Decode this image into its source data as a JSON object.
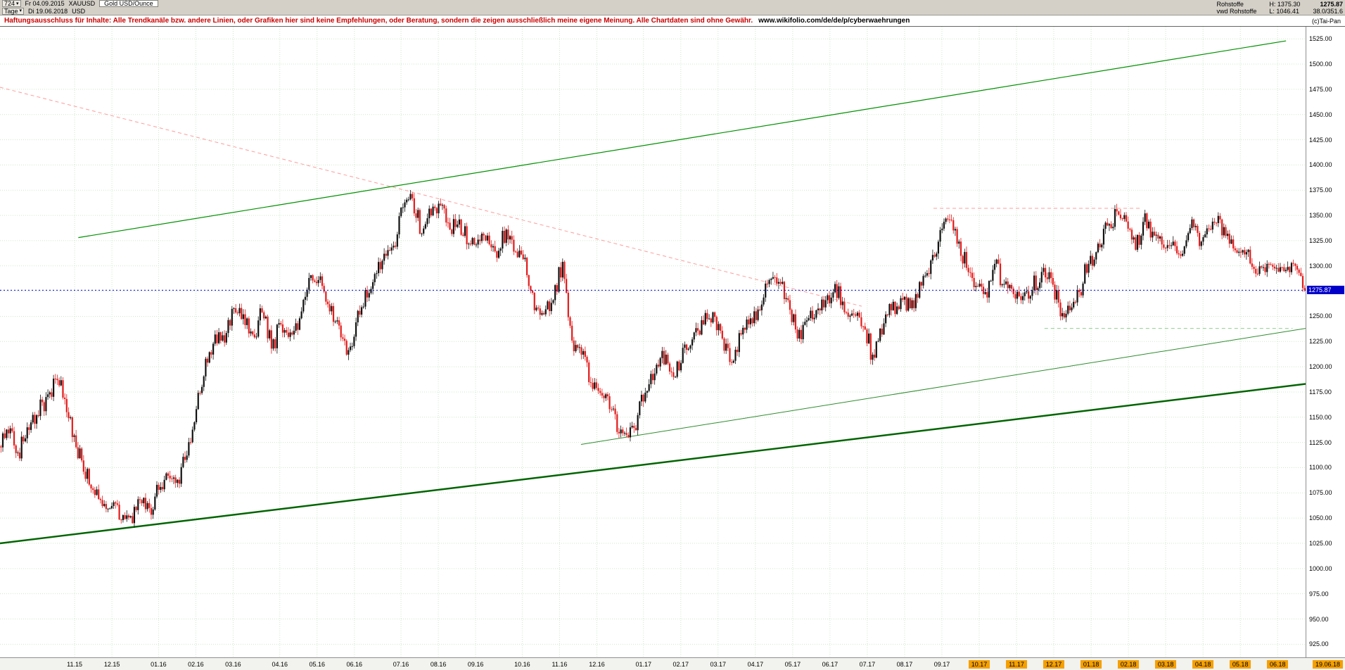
{
  "topbar": {
    "bars_count": "724",
    "start_date": "Fr 04.09.2015",
    "symbol": "XAUUSD",
    "instrument_name": "Gold USD/Ounce",
    "timeframe": "Tage",
    "end_date": "Di 19.06.2018",
    "currency": "USD",
    "category": "Rohstoffe",
    "feed": "vwd Rohstoffe",
    "high_label": "H: 1375.30",
    "low_label": "L: 1046.41",
    "last_price": "1275.87",
    "range_info": "38.0/351.6"
  },
  "disclaimer": {
    "text": "Haftungsausschluss für Inhalte: Alle Trendkanäle bzw. andere Linien, oder Grafiken hier sind keine Empfehlungen, oder Beratung, sondern die zeigen ausschließlich meine eigene Meinung. Alle Chartdaten sind ohne Gewähr.",
    "url": "www.wikifolio.com/de/de/p/cyberwaehrungen",
    "copyright": "(c)Tai-Pan"
  },
  "axis": {
    "current_price_label": "1275.87",
    "end_date_label": "19.06.18"
  },
  "chart_data": {
    "type": "candlestick",
    "title": "Gold USD/Ounce (XAUUSD), Tage, 04.09.2015 - 19.06.2018",
    "ylabel": "USD",
    "ylim": [
      912,
      1537
    ],
    "y_ticks_from": 1525,
    "y_ticks_to": 925,
    "y_tick_step": 25,
    "grid": true,
    "high": 1375.3,
    "low": 1046.41,
    "last": 1275.87,
    "up_color": "#101010",
    "down_color": "#e31a1a",
    "x_months": [
      {
        "label": "",
        "weeks": 8,
        "highlight": false
      },
      {
        "label": "11.15",
        "weeks": 4,
        "highlight": false
      },
      {
        "label": "12.15",
        "weeks": 5,
        "highlight": false
      },
      {
        "label": "01.16",
        "weeks": 4,
        "highlight": false
      },
      {
        "label": "02.16",
        "weeks": 4,
        "highlight": false
      },
      {
        "label": "03.16",
        "weeks": 5,
        "highlight": false
      },
      {
        "label": "04.16",
        "weeks": 4,
        "highlight": false
      },
      {
        "label": "05.16",
        "weeks": 4,
        "highlight": false
      },
      {
        "label": "06.16",
        "weeks": 5,
        "highlight": false
      },
      {
        "label": "07.16",
        "weeks": 4,
        "highlight": false
      },
      {
        "label": "08.16",
        "weeks": 4,
        "highlight": false
      },
      {
        "label": "09.16",
        "weeks": 5,
        "highlight": false
      },
      {
        "label": "10.16",
        "weeks": 4,
        "highlight": false
      },
      {
        "label": "11.16",
        "weeks": 4,
        "highlight": false
      },
      {
        "label": "12.16",
        "weeks": 5,
        "highlight": false
      },
      {
        "label": "01.17",
        "weeks": 4,
        "highlight": false
      },
      {
        "label": "02.17",
        "weeks": 4,
        "highlight": false
      },
      {
        "label": "03.17",
        "weeks": 4,
        "highlight": false
      },
      {
        "label": "04.17",
        "weeks": 4,
        "highlight": false
      },
      {
        "label": "05.17",
        "weeks": 4,
        "highlight": false
      },
      {
        "label": "06.17",
        "weeks": 4,
        "highlight": false
      },
      {
        "label": "07.17",
        "weeks": 4,
        "highlight": false
      },
      {
        "label": "08.17",
        "weeks": 4,
        "highlight": false
      },
      {
        "label": "09.17",
        "weeks": 4,
        "highlight": false
      },
      {
        "label": "10.17",
        "weeks": 4,
        "highlight": true
      },
      {
        "label": "11.17",
        "weeks": 4,
        "highlight": true
      },
      {
        "label": "12.17",
        "weeks": 4,
        "highlight": true
      },
      {
        "label": "01.18",
        "weeks": 4,
        "highlight": true
      },
      {
        "label": "02.18",
        "weeks": 4,
        "highlight": true
      },
      {
        "label": "03.18",
        "weeks": 4,
        "highlight": true
      },
      {
        "label": "04.18",
        "weeks": 4,
        "highlight": true
      },
      {
        "label": "05.18",
        "weeks": 4,
        "highlight": true
      },
      {
        "label": "06.18",
        "weeks": 3,
        "highlight": true
      }
    ],
    "weekly_closes": [
      1121,
      1134,
      1115,
      1140,
      1152,
      1170,
      1188,
      1168,
      1132,
      1096,
      1078,
      1062,
      1062,
      1048,
      1052,
      1068,
      1060,
      1078,
      1092,
      1088,
      1112,
      1158,
      1208,
      1232,
      1224,
      1258,
      1252,
      1232,
      1254,
      1218,
      1242,
      1234,
      1248,
      1288,
      1286,
      1262,
      1246,
      1212,
      1244,
      1276,
      1292,
      1312,
      1320,
      1358,
      1367,
      1332,
      1350,
      1360,
      1336,
      1346,
      1322,
      1326,
      1330,
      1308,
      1336,
      1314,
      1308,
      1256,
      1252,
      1266,
      1304,
      1226,
      1212,
      1184,
      1174,
      1158,
      1134,
      1130,
      1152,
      1176,
      1202,
      1212,
      1190,
      1222,
      1234,
      1242,
      1254,
      1228,
      1204,
      1232,
      1248,
      1256,
      1286,
      1284,
      1266,
      1228,
      1246,
      1256,
      1266,
      1282,
      1254,
      1252,
      1240,
      1212,
      1232,
      1256,
      1268,
      1258,
      1284,
      1292,
      1324,
      1346,
      1322,
      1298,
      1280,
      1274,
      1302,
      1282,
      1272,
      1270,
      1276,
      1294,
      1288,
      1250,
      1256,
      1274,
      1302,
      1322,
      1340,
      1354,
      1344,
      1316,
      1352,
      1330,
      1318,
      1324,
      1312,
      1346,
      1324,
      1336,
      1346,
      1322,
      1314,
      1316,
      1292,
      1302,
      1298,
      1296,
      1300,
      1275.87
    ],
    "trend_lines": [
      {
        "name": "upper-channel-line",
        "x1": 0.06,
        "price1": 1328,
        "x2": 0.985,
        "price2": 1523,
        "color": "#009000",
        "width": 1.2,
        "dash": ""
      },
      {
        "name": "lower-channel-line",
        "x1": 0.0,
        "price1": 1025,
        "x2": 1.0,
        "price2": 1183,
        "color": "#006400",
        "width": 2.4,
        "dash": ""
      },
      {
        "name": "mid-support-line",
        "x1": 0.445,
        "price1": 1123,
        "x2": 1.0,
        "price2": 1238,
        "color": "#2e8b2e",
        "width": 1,
        "dash": ""
      },
      {
        "name": "descending-resistance-line",
        "x1": 0.0,
        "price1": 1477,
        "x2": 0.66,
        "price2": 1260,
        "color": "#ff9b9b",
        "width": 1,
        "dash": "5,4"
      },
      {
        "name": "horizontal-resistance-line",
        "x1": 0.715,
        "price1": 1357,
        "x2": 0.875,
        "price2": 1357,
        "color": "#ff9b9b",
        "width": 1,
        "dash": "5,4"
      },
      {
        "name": "horizontal-support-line",
        "x1": 0.8,
        "price1": 1238,
        "x2": 0.99,
        "price2": 1238,
        "color": "#8fcf8f",
        "width": 1,
        "dash": "5,4"
      }
    ],
    "current_price_line": {
      "price": 1275.87,
      "color": "#0000dd"
    }
  },
  "colors": {
    "toolbar_bg": "#d4d0c8",
    "grid": "#cde7cd",
    "highlight_orange": "#f5a000",
    "price_tag_bg": "#0000c8",
    "disclaimer_red": "#cc0000"
  }
}
